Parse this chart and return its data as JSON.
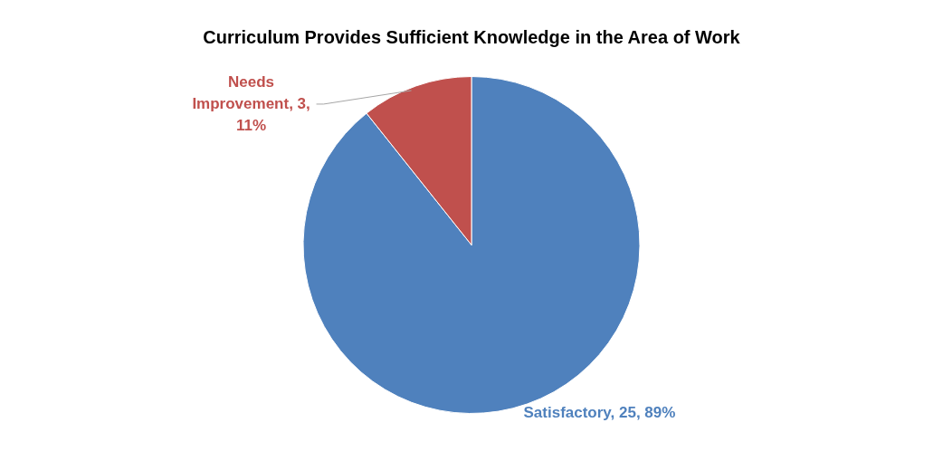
{
  "chart_data": {
    "type": "pie",
    "title": "Curriculum Provides Sufficient Knowledge in the Area of Work",
    "categories": [
      "Satisfactory",
      "Needs Improvement"
    ],
    "values": [
      25,
      3
    ],
    "colors": [
      "#4f81bd",
      "#c0504d"
    ],
    "value_labels": [
      "25, 89%",
      "3, 11%"
    ],
    "legend": false
  }
}
